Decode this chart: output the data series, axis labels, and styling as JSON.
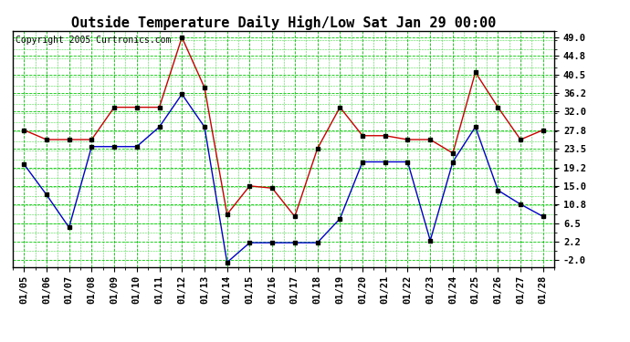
{
  "title": "Outside Temperature Daily High/Low Sat Jan 29 00:00",
  "copyright": "Copyright 2005 Curtronics.com",
  "x_labels": [
    "01/05",
    "01/06",
    "01/07",
    "01/08",
    "01/09",
    "01/10",
    "01/11",
    "01/12",
    "01/13",
    "01/14",
    "01/15",
    "01/16",
    "01/17",
    "01/18",
    "01/19",
    "01/20",
    "01/21",
    "01/22",
    "01/23",
    "01/24",
    "01/25",
    "01/26",
    "01/27",
    "01/28"
  ],
  "high_values": [
    27.8,
    25.6,
    25.6,
    25.6,
    33.0,
    33.0,
    33.0,
    49.0,
    37.5,
    8.5,
    15.0,
    14.5,
    8.0,
    23.5,
    33.0,
    26.5,
    26.5,
    25.6,
    25.6,
    22.5,
    41.0,
    33.0,
    25.6,
    27.8
  ],
  "low_values": [
    20.0,
    13.0,
    5.5,
    24.0,
    24.0,
    24.0,
    28.5,
    36.0,
    28.5,
    -2.5,
    2.0,
    2.0,
    2.0,
    2.0,
    7.5,
    20.5,
    20.5,
    20.5,
    2.5,
    20.5,
    28.5,
    14.0,
    10.8,
    8.0
  ],
  "high_color": "#cc0000",
  "low_color": "#0000cc",
  "marker_color": "#000000",
  "bg_color": "#ffffff",
  "plot_bg_color": "#ffffff",
  "grid_color": "#00cc00",
  "grid_minor_color": "#00cc00",
  "yticks": [
    -2.0,
    2.2,
    6.5,
    10.8,
    15.0,
    19.2,
    23.5,
    27.8,
    32.0,
    36.2,
    40.5,
    44.8,
    49.0
  ],
  "ylim": [
    -3.5,
    50.5
  ],
  "title_fontsize": 11,
  "tick_fontsize": 7.5,
  "copyright_fontsize": 7
}
